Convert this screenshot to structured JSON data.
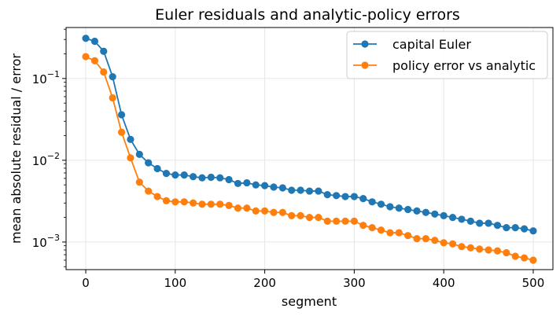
{
  "chart_data": {
    "type": "line",
    "title": "Euler residuals and analytic-policy errors",
    "xlabel": "segment",
    "ylabel": "mean absolute residual / error",
    "xlim": [
      -22,
      522
    ],
    "ylim": [
      0.00046,
      0.42
    ],
    "yscale": "log",
    "x_ticks": [
      0,
      100,
      200,
      300,
      400,
      500
    ],
    "y_ticks": [
      {
        "value": 0.1,
        "base": "10",
        "exp": "−1"
      },
      {
        "value": 0.01,
        "base": "10",
        "exp": "−2"
      },
      {
        "value": 0.001,
        "base": "10",
        "exp": "−3"
      }
    ],
    "grid": true,
    "legend_position": "top-right",
    "x": [
      0,
      10,
      20,
      30,
      40,
      50,
      60,
      70,
      80,
      90,
      100,
      110,
      120,
      130,
      140,
      150,
      160,
      170,
      180,
      190,
      200,
      210,
      220,
      230,
      240,
      250,
      260,
      270,
      280,
      290,
      300,
      310,
      320,
      330,
      340,
      350,
      360,
      370,
      380,
      390,
      400,
      410,
      420,
      430,
      440,
      450,
      460,
      470,
      480,
      490,
      500
    ],
    "series": [
      {
        "name": "capital Euler",
        "color": "#1f77b4",
        "marker": "circle",
        "values": [
          0.31,
          0.285,
          0.215,
          0.105,
          0.036,
          0.018,
          0.0118,
          0.0093,
          0.0079,
          0.0069,
          0.0066,
          0.0066,
          0.0063,
          0.0061,
          0.0062,
          0.0061,
          0.0058,
          0.0052,
          0.0053,
          0.005,
          0.0049,
          0.0047,
          0.0046,
          0.0043,
          0.0043,
          0.0042,
          0.0042,
          0.0038,
          0.0037,
          0.0036,
          0.0036,
          0.0034,
          0.0031,
          0.0029,
          0.0027,
          0.0026,
          0.0025,
          0.0024,
          0.0023,
          0.0022,
          0.0021,
          0.002,
          0.0019,
          0.0018,
          0.0017,
          0.0017,
          0.0016,
          0.0015,
          0.0015,
          0.00145,
          0.00137
        ]
      },
      {
        "name": "policy error vs analytic",
        "color": "#ff7f0e",
        "marker": "circle",
        "values": [
          0.185,
          0.165,
          0.12,
          0.058,
          0.022,
          0.0107,
          0.0054,
          0.0042,
          0.0036,
          0.0032,
          0.0031,
          0.0031,
          0.003,
          0.0029,
          0.0029,
          0.0029,
          0.0028,
          0.0026,
          0.0026,
          0.0024,
          0.0024,
          0.0023,
          0.0023,
          0.0021,
          0.0021,
          0.002,
          0.002,
          0.0018,
          0.0018,
          0.0018,
          0.0018,
          0.0016,
          0.0015,
          0.0014,
          0.0013,
          0.0013,
          0.0012,
          0.0011,
          0.0011,
          0.00105,
          0.00098,
          0.00095,
          0.00088,
          0.00085,
          0.00082,
          0.0008,
          0.00078,
          0.00074,
          0.00067,
          0.00064,
          0.0006
        ]
      }
    ]
  }
}
